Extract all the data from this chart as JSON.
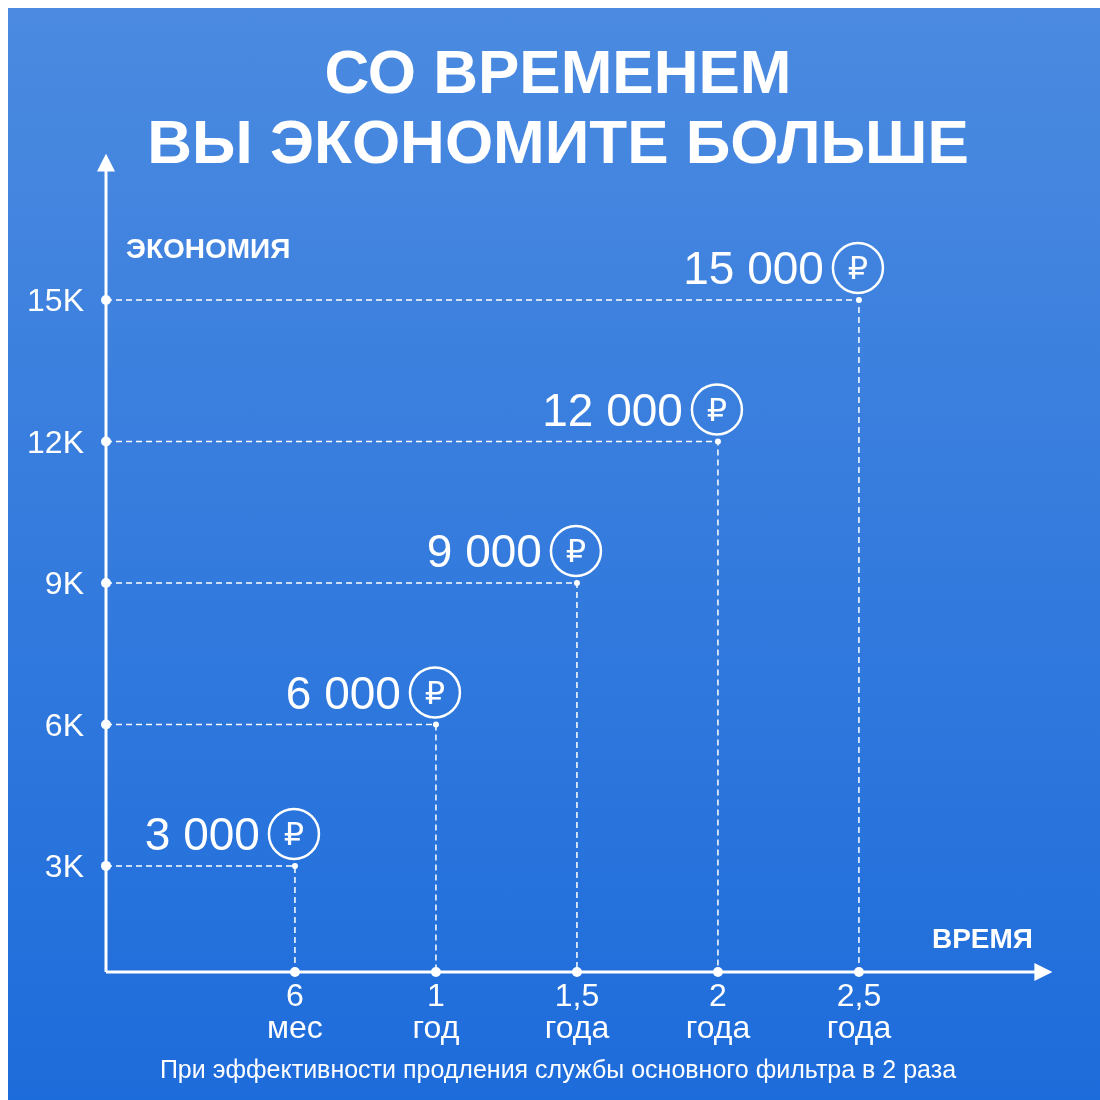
{
  "chart_data": {
    "type": "scatter",
    "title": "СО ВРЕМЕНЕМ\nВЫ ЭКОНОМИТЕ БОЛЬШЕ",
    "xlabel": "ВРЕМЯ",
    "ylabel": "ЭКОНОМИЯ",
    "categories": [
      "6 мес",
      "1 год",
      "1,5 года",
      "2 года",
      "2,5 года"
    ],
    "values": [
      3000,
      6000,
      9000,
      12000,
      15000
    ],
    "value_labels": [
      "3 000 ₽",
      "6 000 ₽",
      "9 000 ₽",
      "12 000 ₽",
      "15 000 ₽"
    ],
    "color": "#ffffff",
    "marker": "circle",
    "line_style": "dashed",
    "grid": false,
    "ylim": [
      750,
      17800
    ],
    "yticks": [
      {
        "value": 3000,
        "label": "3K"
      },
      {
        "value": 6000,
        "label": "6K"
      },
      {
        "value": 9000,
        "label": "9K"
      },
      {
        "value": 12000,
        "label": "12K"
      },
      {
        "value": 15000,
        "label": "15K"
      }
    ],
    "annotations": [
      "При эффективности продления службы основного фильтра в 2 раза"
    ]
  }
}
